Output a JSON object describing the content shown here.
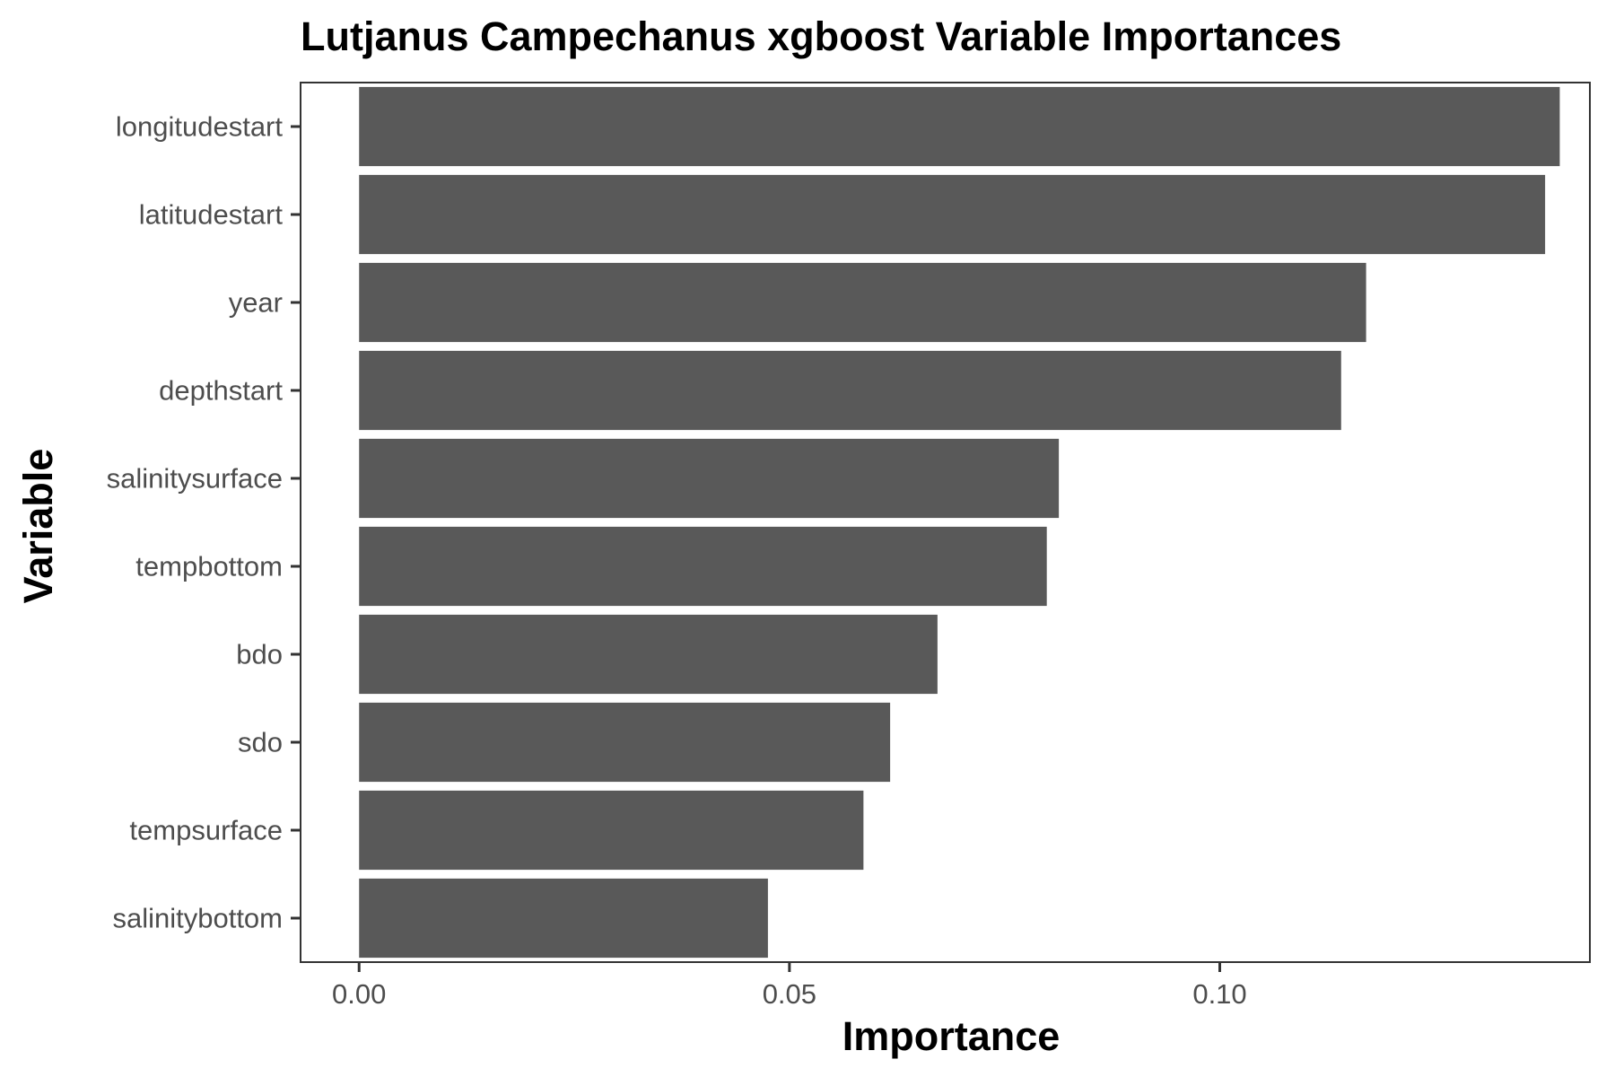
{
  "chart_data": {
    "type": "bar",
    "orientation": "horizontal",
    "title": "Lutjanus Campechanus xgboost Variable Importances",
    "xlabel": "Importance",
    "ylabel": "Variable",
    "categories": [
      "longitudestart",
      "latitudestart",
      "year",
      "depthstart",
      "salinitysurface",
      "tempbottom",
      "bdo",
      "sdo",
      "tempsurface",
      "salinitybottom"
    ],
    "values": [
      0.1395,
      0.1378,
      0.117,
      0.1141,
      0.0813,
      0.0799,
      0.0672,
      0.0617,
      0.0586,
      0.0475
    ],
    "xlim": [
      -0.0068,
      0.143
    ],
    "x_ticks": [
      0.0,
      0.05,
      0.1
    ],
    "x_tick_labels": [
      "0.00",
      "0.05",
      "0.10"
    ],
    "bar_color": "#595959",
    "grid": false,
    "legend": "none"
  }
}
